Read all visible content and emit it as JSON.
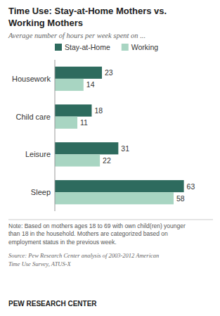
{
  "chart_data": {
    "type": "bar",
    "orientation": "horizontal",
    "title": "Time Use: Stay-at-Home Mothers vs.\nWorking Mothers",
    "subtitle": "Average number of hours per week spent on ...",
    "categories": [
      "Housework",
      "Child care",
      "Leisure",
      "Sleep"
    ],
    "series": [
      {
        "name": "Stay-at-Home",
        "color": "#2e6b5e",
        "values": [
          23,
          18,
          31,
          63
        ]
      },
      {
        "name": "Working",
        "color": "#a8d5c2",
        "values": [
          14,
          11,
          22,
          58
        ]
      }
    ],
    "xlim": [
      0,
      70
    ],
    "data_labels": true,
    "tick_labels": "y",
    "grid": false,
    "legend": "top",
    "annotations": [
      "Note: Based on mothers ages 18 to 69 with own child(ren) younger\nthan 18 in the household. Mothers are categorized based on\nemployment status in the previous week.",
      "Source: Pew Research Center analysis of 2003-2012 American\nTime Use Survey, ATUS-X",
      "PEW RESEARCH CENTER"
    ]
  }
}
